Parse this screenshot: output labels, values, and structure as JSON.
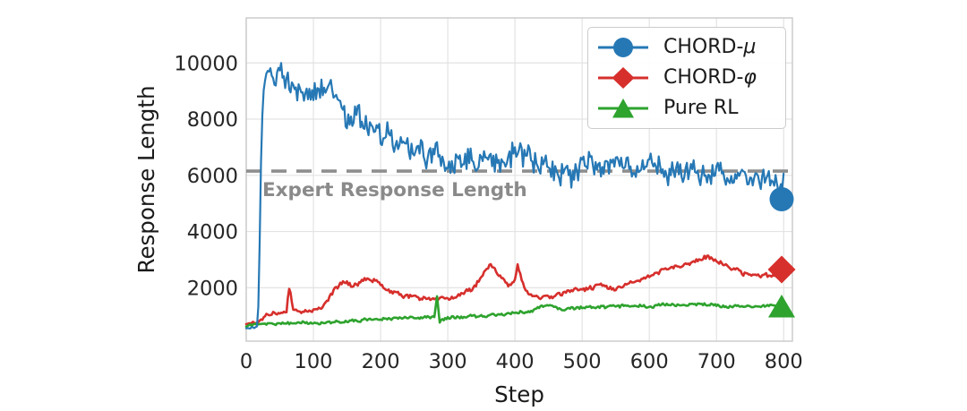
{
  "figure": {
    "background": "#ffffff",
    "grid_color": "#e3e3e3",
    "spine_color": "#c9c9c9",
    "tick_label_color": "#262626",
    "axis_label_color": "#1a1a1a"
  },
  "chart_data": {
    "type": "line",
    "title": "",
    "xlabel": "Step",
    "ylabel": "Response Length",
    "xlim": [
      0,
      813
    ],
    "ylim": [
      100,
      11600
    ],
    "x_ticks": [
      0,
      100,
      200,
      300,
      400,
      500,
      600,
      700,
      800
    ],
    "y_ticks": [
      2000,
      4000,
      6000,
      8000,
      10000
    ],
    "grid": true,
    "legend_position": "upper right",
    "reference_line": {
      "label": "Expert Response Length",
      "value": 6150,
      "color": "#8e8e8e",
      "style": "dashed",
      "label_color": "#8a8a8a"
    },
    "series": [
      {
        "name": "CHORD-μ",
        "label_prefix": "CHORD-",
        "label_math": "μ",
        "color": "#2678b5",
        "marker": "circle",
        "line_width": 2.2,
        "end_marker": {
          "x": 797,
          "y": 5150
        },
        "noise": [
          [
            17,
            50
          ],
          [
            30,
            250
          ],
          [
            80,
            550
          ],
          [
            220,
            700
          ],
          [
            520,
            650
          ],
          [
            801,
            520
          ]
        ],
        "anchors": [
          [
            0,
            550
          ],
          [
            8,
            580
          ],
          [
            14,
            600
          ],
          [
            17,
            650
          ],
          [
            19,
            2500
          ],
          [
            22,
            6500
          ],
          [
            25,
            9000
          ],
          [
            30,
            9700
          ],
          [
            35,
            9900
          ],
          [
            40,
            9600
          ],
          [
            45,
            9800
          ],
          [
            50,
            10000
          ],
          [
            55,
            9900
          ],
          [
            60,
            9500
          ],
          [
            65,
            9600
          ],
          [
            70,
            9400
          ],
          [
            75,
            9200
          ],
          [
            80,
            9500
          ],
          [
            85,
            9300
          ],
          [
            90,
            9000
          ],
          [
            95,
            9200
          ],
          [
            100,
            8900
          ],
          [
            110,
            8900
          ],
          [
            120,
            8700
          ],
          [
            130,
            8800
          ],
          [
            140,
            8400
          ],
          [
            150,
            8200
          ],
          [
            160,
            8100
          ],
          [
            170,
            8300
          ],
          [
            180,
            7900
          ],
          [
            190,
            7800
          ],
          [
            200,
            7600
          ],
          [
            210,
            7700
          ],
          [
            220,
            7400
          ],
          [
            230,
            7500
          ],
          [
            240,
            7200
          ],
          [
            250,
            7300
          ],
          [
            260,
            7000
          ],
          [
            270,
            6900
          ],
          [
            280,
            7000
          ],
          [
            290,
            6800
          ],
          [
            300,
            6700
          ],
          [
            320,
            6700
          ],
          [
            340,
            6600
          ],
          [
            360,
            6700
          ],
          [
            380,
            6500
          ],
          [
            400,
            6500
          ],
          [
            420,
            6400
          ],
          [
            440,
            6400
          ],
          [
            460,
            6300
          ],
          [
            480,
            6300
          ],
          [
            500,
            6300
          ],
          [
            520,
            6200
          ],
          [
            540,
            6200
          ],
          [
            560,
            6200
          ],
          [
            580,
            6150
          ],
          [
            600,
            6200
          ],
          [
            620,
            6100
          ],
          [
            640,
            6150
          ],
          [
            660,
            6100
          ],
          [
            680,
            6150
          ],
          [
            700,
            6050
          ],
          [
            720,
            6100
          ],
          [
            740,
            6000
          ],
          [
            760,
            6100
          ],
          [
            780,
            6000
          ],
          [
            800,
            6000
          ]
        ]
      },
      {
        "name": "CHORD-φ",
        "label_prefix": "CHORD-",
        "label_math": "φ",
        "color": "#d62f2c",
        "marker": "diamond",
        "line_width": 2.6,
        "end_marker": {
          "x": 797,
          "y": 2650
        },
        "noise": [
          [
            120,
            70
          ],
          [
            801,
            110
          ]
        ],
        "anchors": [
          [
            0,
            700
          ],
          [
            10,
            750
          ],
          [
            20,
            800
          ],
          [
            30,
            1050
          ],
          [
            40,
            1100
          ],
          [
            50,
            1100
          ],
          [
            60,
            1150
          ],
          [
            63,
            1900
          ],
          [
            65,
            2080
          ],
          [
            67,
            1600
          ],
          [
            70,
            1250
          ],
          [
            80,
            1150
          ],
          [
            90,
            1150
          ],
          [
            100,
            1150
          ],
          [
            110,
            1250
          ],
          [
            120,
            1500
          ],
          [
            130,
            1850
          ],
          [
            140,
            2100
          ],
          [
            150,
            2150
          ],
          [
            160,
            2150
          ],
          [
            170,
            2200
          ],
          [
            180,
            2350
          ],
          [
            190,
            2250
          ],
          [
            200,
            2200
          ],
          [
            210,
            1950
          ],
          [
            220,
            1850
          ],
          [
            230,
            1800
          ],
          [
            240,
            1700
          ],
          [
            250,
            1650
          ],
          [
            260,
            1600
          ],
          [
            270,
            1650
          ],
          [
            280,
            1550
          ],
          [
            290,
            1600
          ],
          [
            300,
            1650
          ],
          [
            310,
            1700
          ],
          [
            320,
            1800
          ],
          [
            330,
            1900
          ],
          [
            340,
            2100
          ],
          [
            350,
            2400
          ],
          [
            360,
            2800
          ],
          [
            365,
            2850
          ],
          [
            370,
            2650
          ],
          [
            380,
            2350
          ],
          [
            390,
            2100
          ],
          [
            395,
            2050
          ],
          [
            400,
            2300
          ],
          [
            404,
            2750
          ],
          [
            408,
            2400
          ],
          [
            415,
            1950
          ],
          [
            420,
            1800
          ],
          [
            425,
            1700
          ],
          [
            435,
            1650
          ],
          [
            445,
            1700
          ],
          [
            455,
            1600
          ],
          [
            465,
            1700
          ],
          [
            475,
            1800
          ],
          [
            485,
            1900
          ],
          [
            495,
            1950
          ],
          [
            505,
            1900
          ],
          [
            515,
            1950
          ],
          [
            525,
            2050
          ],
          [
            535,
            2000
          ],
          [
            545,
            1950
          ],
          [
            555,
            2050
          ],
          [
            565,
            2150
          ],
          [
            575,
            2250
          ],
          [
            585,
            2300
          ],
          [
            595,
            2400
          ],
          [
            605,
            2500
          ],
          [
            615,
            2600
          ],
          [
            625,
            2650
          ],
          [
            635,
            2700
          ],
          [
            645,
            2750
          ],
          [
            655,
            2850
          ],
          [
            665,
            2900
          ],
          [
            675,
            3000
          ],
          [
            685,
            3050
          ],
          [
            695,
            2950
          ],
          [
            705,
            2850
          ],
          [
            715,
            2750
          ],
          [
            725,
            2650
          ],
          [
            735,
            2550
          ],
          [
            745,
            2450
          ],
          [
            755,
            2400
          ],
          [
            765,
            2400
          ],
          [
            775,
            2450
          ],
          [
            785,
            2350
          ],
          [
            795,
            2400
          ],
          [
            800,
            2450
          ]
        ]
      },
      {
        "name": "Pure RL",
        "label_prefix": "Pure RL",
        "label_math": "",
        "color": "#2ea32e",
        "marker": "triangle",
        "line_width": 2.6,
        "end_marker": {
          "x": 797,
          "y": 1310
        },
        "noise": [
          [
            801,
            70
          ]
        ],
        "anchors": [
          [
            0,
            620
          ],
          [
            20,
            650
          ],
          [
            40,
            680
          ],
          [
            60,
            700
          ],
          [
            80,
            730
          ],
          [
            100,
            760
          ],
          [
            120,
            780
          ],
          [
            140,
            800
          ],
          [
            160,
            820
          ],
          [
            180,
            840
          ],
          [
            200,
            850
          ],
          [
            220,
            870
          ],
          [
            240,
            890
          ],
          [
            260,
            910
          ],
          [
            280,
            940
          ],
          [
            284,
            1650
          ],
          [
            288,
            750
          ],
          [
            292,
            900
          ],
          [
            300,
            950
          ],
          [
            320,
            980
          ],
          [
            340,
            1000
          ],
          [
            360,
            1020
          ],
          [
            380,
            1050
          ],
          [
            400,
            1080
          ],
          [
            420,
            1120
          ],
          [
            440,
            1300
          ],
          [
            455,
            1380
          ],
          [
            470,
            1200
          ],
          [
            490,
            1250
          ],
          [
            510,
            1280
          ],
          [
            530,
            1300
          ],
          [
            550,
            1320
          ],
          [
            570,
            1330
          ],
          [
            590,
            1340
          ],
          [
            610,
            1360
          ],
          [
            630,
            1380
          ],
          [
            650,
            1400
          ],
          [
            670,
            1380
          ],
          [
            690,
            1380
          ],
          [
            710,
            1350
          ],
          [
            730,
            1340
          ],
          [
            750,
            1330
          ],
          [
            770,
            1330
          ],
          [
            790,
            1340
          ],
          [
            800,
            1340
          ]
        ]
      }
    ]
  }
}
